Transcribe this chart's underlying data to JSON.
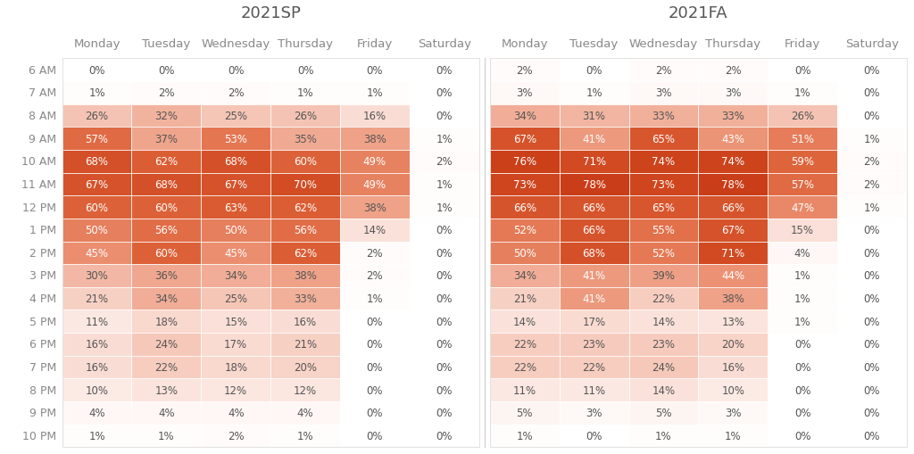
{
  "title_sp": "2021SP",
  "title_fa": "2021FA",
  "hours": [
    "6 AM",
    "7 AM",
    "8 AM",
    "9 AM",
    "10 AM",
    "11 AM",
    "12 PM",
    "1 PM",
    "2 PM",
    "3 PM",
    "4 PM",
    "5 PM",
    "6 PM",
    "7 PM",
    "8 PM",
    "9 PM",
    "10 PM"
  ],
  "days": [
    "Monday",
    "Tuesday",
    "Wednesday",
    "Thursday",
    "Friday",
    "Saturday"
  ],
  "sp_data": [
    [
      0,
      0,
      0,
      0,
      0,
      0
    ],
    [
      1,
      2,
      2,
      1,
      1,
      0
    ],
    [
      26,
      32,
      25,
      26,
      16,
      0
    ],
    [
      57,
      37,
      53,
      35,
      38,
      1
    ],
    [
      68,
      62,
      68,
      60,
      49,
      2
    ],
    [
      67,
      68,
      67,
      70,
      49,
      1
    ],
    [
      60,
      60,
      63,
      62,
      38,
      1
    ],
    [
      50,
      56,
      50,
      56,
      14,
      0
    ],
    [
      45,
      60,
      45,
      62,
      2,
      0
    ],
    [
      30,
      36,
      34,
      38,
      2,
      0
    ],
    [
      21,
      34,
      25,
      33,
      1,
      0
    ],
    [
      11,
      18,
      15,
      16,
      0,
      0
    ],
    [
      16,
      24,
      17,
      21,
      0,
      0
    ],
    [
      16,
      22,
      18,
      20,
      0,
      0
    ],
    [
      10,
      13,
      12,
      12,
      0,
      0
    ],
    [
      4,
      4,
      4,
      4,
      0,
      0
    ],
    [
      1,
      1,
      2,
      1,
      0,
      0
    ]
  ],
  "fa_data": [
    [
      2,
      0,
      2,
      2,
      0,
      0
    ],
    [
      3,
      1,
      3,
      3,
      1,
      0
    ],
    [
      34,
      31,
      33,
      33,
      26,
      0
    ],
    [
      67,
      41,
      65,
      43,
      51,
      1
    ],
    [
      76,
      71,
      74,
      74,
      59,
      2
    ],
    [
      73,
      78,
      73,
      78,
      57,
      2
    ],
    [
      66,
      66,
      65,
      66,
      47,
      1
    ],
    [
      52,
      66,
      55,
      67,
      15,
      0
    ],
    [
      50,
      68,
      52,
      71,
      4,
      0
    ],
    [
      34,
      41,
      39,
      44,
      1,
      0
    ],
    [
      21,
      41,
      22,
      38,
      1,
      0
    ],
    [
      14,
      17,
      14,
      13,
      1,
      0
    ],
    [
      22,
      23,
      23,
      20,
      0,
      0
    ],
    [
      22,
      22,
      24,
      16,
      0,
      0
    ],
    [
      11,
      11,
      14,
      10,
      0,
      0
    ],
    [
      5,
      3,
      5,
      3,
      0,
      0
    ],
    [
      1,
      0,
      1,
      1,
      0,
      0
    ]
  ],
  "background_color": "#ffffff",
  "cell_edge_color": "#ffffff",
  "title_fontsize": 13,
  "header_fontsize": 9.5,
  "cell_fontsize": 8.5,
  "row_label_fontsize": 9,
  "threshold_white": 40,
  "text_dark": "#555555",
  "text_light": "#ffffff",
  "header_color": "#888888",
  "title_color": "#555555",
  "row_label_color": "#888888"
}
